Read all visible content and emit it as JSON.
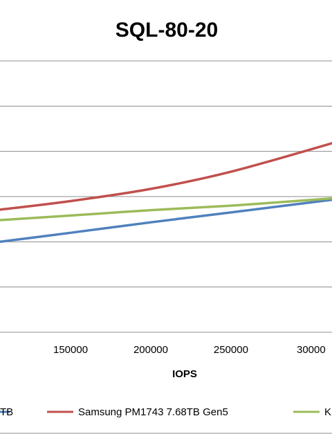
{
  "chart_data": {
    "type": "line",
    "title": "SQL-80-20",
    "xlabel": "IOPS",
    "ylabel": "",
    "x_ticks": [
      "150000",
      "200000",
      "250000",
      "30000"
    ],
    "xlim": [
      106000,
      313000
    ],
    "grid": true,
    "legend_position": "bottom",
    "series": [
      {
        "name": "TB",
        "color": "#4f81bd",
        "x": [
          106000,
          150000,
          200000,
          250000,
          313000
        ],
        "y": [
          3.0,
          3.2,
          3.43,
          3.65,
          3.93
        ]
      },
      {
        "name": "Samsung PM1743 7.68TB Gen5",
        "color": "#c0504d",
        "x": [
          106000,
          150000,
          200000,
          250000,
          313000
        ],
        "y": [
          3.71,
          3.9,
          4.17,
          4.55,
          5.18
        ]
      },
      {
        "name": "K",
        "color": "#9bbb59",
        "x": [
          106000,
          150000,
          200000,
          250000,
          313000
        ],
        "y": [
          3.48,
          3.58,
          3.7,
          3.8,
          3.96
        ]
      }
    ]
  }
}
